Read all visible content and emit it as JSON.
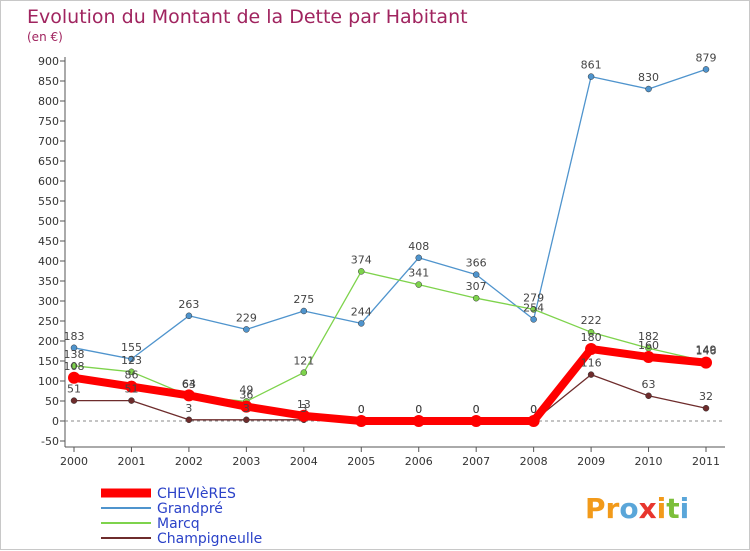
{
  "chart_data": {
    "type": "line",
    "title": "Evolution du Montant de la Dette par Habitant",
    "subtitle": "(en €)",
    "xlabel": "",
    "ylabel": "",
    "categories": [
      "2000",
      "2001",
      "2002",
      "2003",
      "2004",
      "2005",
      "2006",
      "2007",
      "2008",
      "2009",
      "2010",
      "2011"
    ],
    "y_ticks": [
      "-50",
      "0",
      "50",
      "100",
      "150",
      "200",
      "250",
      "300",
      "350",
      "400",
      "450",
      "500",
      "550",
      "600",
      "650",
      "700",
      "750",
      "800",
      "850",
      "900"
    ],
    "ylim": [
      -50,
      900
    ],
    "grid": false,
    "legend_position": "bottom-left",
    "series": [
      {
        "name": "CHEVIèRES",
        "color": "#ff0000",
        "values": [
          108,
          86,
          64,
          36,
          13,
          0,
          0,
          0,
          0,
          180,
          160,
          146
        ]
      },
      {
        "name": "Grandpré",
        "color": "#4f94cd",
        "values": [
          183,
          155,
          263,
          229,
          275,
          244,
          408,
          366,
          254,
          861,
          830,
          879
        ]
      },
      {
        "name": "Marcq",
        "color": "#7ed34c",
        "values": [
          138,
          123,
          63,
          49,
          121,
          374,
          341,
          307,
          279,
          222,
          182,
          149
        ]
      },
      {
        "name": "Champigneulle",
        "color": "#6e2c2c",
        "values": [
          51,
          51,
          3,
          3,
          3,
          0,
          0,
          0,
          0,
          116,
          63,
          32
        ]
      }
    ]
  },
  "logo": {
    "p": "Pr",
    "o": "o",
    "x": "x",
    "i": "i",
    "t": "t",
    "i2": "i"
  }
}
